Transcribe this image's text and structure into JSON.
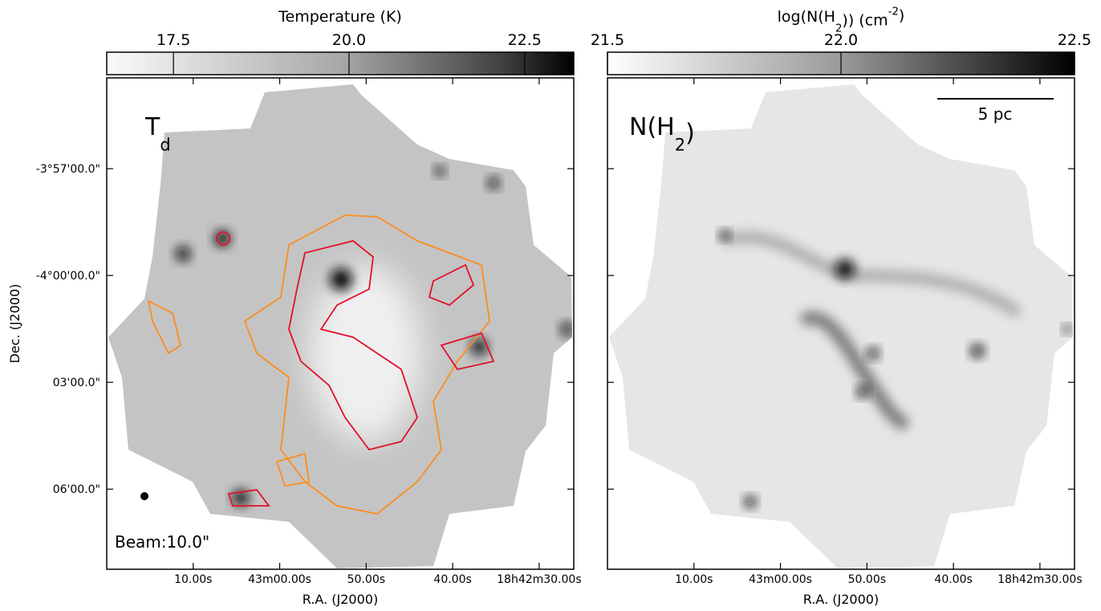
{
  "chart_data": [
    {
      "type": "image",
      "colorbar": {
        "label": [
          "Temperature (K)"
        ],
        "clim": [
          16.55,
          23.2
        ],
        "cticks": [
          17.5,
          {
            "value": 20,
            "label": "20.0"
          },
          22.5
        ]
      },
      "annotation": [
        "T",
        "d"
      ],
      "beam": "Beam:10.0\"",
      "xlabel": "R.A. (J2000)",
      "ylabel": "Dec. (J2000)",
      "xlim": [
        67400,
        67346
      ],
      "xticks": [
        {
          "value": 67390,
          "label": "10.00s"
        },
        {
          "value": 67380,
          "label": "43m00.00s"
        },
        {
          "value": 67370,
          "label": "50.00s"
        },
        {
          "value": 67360,
          "label": "40.00s"
        },
        {
          "value": 67350,
          "label": "18h42m30.00s"
        }
      ],
      "ylim": [
        -14895,
        -14067
      ],
      "yticks": [
        {
          "value": -14220,
          "label": "-3°57'00.0\""
        },
        {
          "value": -14400,
          "label": "-4°00'00.0\""
        },
        {
          "value": -14580,
          "label": "03'00.0\""
        },
        {
          "value": -14760,
          "label": "06'00.0\""
        }
      ],
      "contour_colors": [
        "#ff8c1a",
        "#e0102a"
      ]
    },
    {
      "type": "image",
      "colorbar": {
        "label": [
          "log(N(H",
          "2",
          ")) (cm",
          "-2",
          ")"
        ],
        "clim": [
          21.5,
          22.5
        ],
        "cticks": [
          21.5,
          {
            "value": 22,
            "label": "22.0"
          },
          22.5
        ]
      },
      "annotation": [
        "N(H",
        "2",
        ")"
      ],
      "scalebar": "5 pc",
      "xlabel": "R.A. (J2000)",
      "xlim": [
        67400,
        67346
      ],
      "xticks": [
        {
          "value": 67390,
          "label": "10.00s"
        },
        {
          "value": 67380,
          "label": "43m00.00s"
        },
        {
          "value": 67370,
          "label": "50.00s"
        },
        {
          "value": 67360,
          "label": "40.00s"
        },
        {
          "value": 67350,
          "label": "18h42m30.00s"
        }
      ],
      "ylim": [
        -14895,
        -14067
      ],
      "yticks": [
        -14220,
        -14400,
        -14580,
        -14760
      ]
    }
  ]
}
